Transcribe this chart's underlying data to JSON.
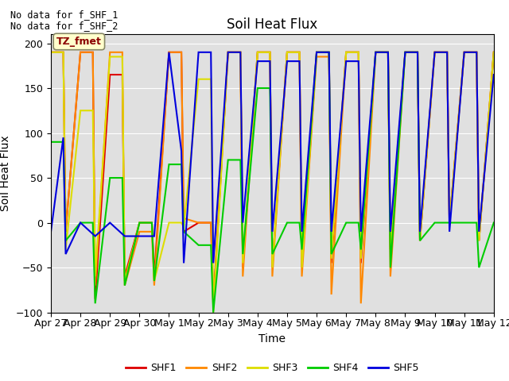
{
  "title": "Soil Heat Flux",
  "ylabel": "Soil Heat Flux",
  "xlabel": "Time",
  "text_line1": "No data for f_SHF_1",
  "text_line2": "No data for f_SHF_2",
  "annotation_box": "TZ_fmet",
  "ylim": [
    -100,
    210
  ],
  "yticks": [
    -100,
    -50,
    0,
    50,
    100,
    150,
    200
  ],
  "colors": {
    "SHF1": "#dd0000",
    "SHF2": "#ff8800",
    "SHF3": "#dddd00",
    "SHF4": "#00cc00",
    "SHF5": "#0000dd"
  },
  "bg_color": "#e0e0e0",
  "legend_labels": [
    "SHF1",
    "SHF2",
    "SHF3",
    "SHF4",
    "SHF5"
  ],
  "x_tick_labels": [
    "Apr 27",
    "Apr 28",
    "Apr 29",
    "Apr 30",
    "May 1",
    "May 2",
    "May 3",
    "May 4",
    "May 5",
    "May 6",
    "May 7",
    "May 8",
    "May 9",
    "May 10",
    "May 11",
    "May 12"
  ],
  "xlim": [
    0,
    15
  ],
  "shf_data": {
    "SHF1": {
      "x": [
        0.0,
        0.42,
        0.5,
        1.0,
        1.42,
        1.5,
        2.0,
        2.42,
        2.5,
        3.0,
        3.42,
        3.5,
        4.0,
        4.42,
        4.5,
        5.0,
        5.42,
        5.5,
        6.0,
        6.42,
        6.5,
        7.0,
        7.42,
        7.5,
        8.0,
        8.42,
        8.5,
        9.0,
        9.42,
        9.5,
        10.0,
        10.42,
        10.5,
        11.0,
        11.42,
        11.5,
        12.0,
        12.42,
        12.5,
        13.0,
        13.42,
        13.5,
        14.0,
        14.42,
        14.5,
        15.0
      ],
      "y": [
        190,
        190,
        -10,
        190,
        190,
        -85,
        165,
        165,
        -60,
        0,
        0,
        -60,
        190,
        190,
        -10,
        0,
        0,
        -90,
        190,
        190,
        -50,
        190,
        190,
        -50,
        190,
        190,
        -50,
        190,
        190,
        -45,
        190,
        190,
        -45,
        190,
        190,
        -30,
        190,
        190,
        -20,
        190,
        190,
        0,
        190,
        190,
        -20,
        190
      ]
    },
    "SHF2": {
      "x": [
        0.0,
        0.42,
        0.5,
        1.0,
        1.42,
        1.5,
        2.0,
        2.42,
        2.5,
        3.0,
        3.42,
        3.5,
        4.0,
        4.42,
        4.5,
        5.0,
        5.42,
        5.5,
        6.0,
        6.42,
        6.5,
        7.0,
        7.42,
        7.5,
        8.0,
        8.42,
        8.5,
        9.0,
        9.42,
        9.5,
        10.0,
        10.42,
        10.5,
        11.0,
        11.42,
        11.5,
        12.0,
        12.42,
        12.5,
        13.0,
        13.42,
        13.5,
        14.0,
        14.42,
        14.5,
        15.0
      ],
      "y": [
        190,
        190,
        -10,
        190,
        190,
        -70,
        190,
        190,
        -70,
        -10,
        -10,
        -70,
        190,
        190,
        5,
        0,
        0,
        -95,
        190,
        190,
        -60,
        190,
        190,
        -60,
        190,
        190,
        -60,
        185,
        185,
        -80,
        190,
        190,
        -90,
        190,
        190,
        -60,
        190,
        190,
        -20,
        190,
        190,
        0,
        190,
        190,
        -20,
        190
      ]
    },
    "SHF3": {
      "x": [
        0.0,
        0.42,
        0.5,
        1.0,
        1.42,
        1.5,
        2.0,
        2.42,
        2.5,
        3.0,
        3.42,
        3.5,
        4.0,
        4.42,
        4.5,
        5.0,
        5.42,
        5.5,
        6.0,
        6.42,
        6.5,
        7.0,
        7.42,
        7.5,
        8.0,
        8.42,
        8.5,
        9.0,
        9.42,
        9.5,
        10.0,
        10.42,
        10.5,
        11.0,
        11.42,
        11.5,
        12.0,
        12.42,
        12.5,
        13.0,
        13.42,
        13.5,
        14.0,
        14.42,
        14.5,
        15.0
      ],
      "y": [
        190,
        190,
        -30,
        125,
        125,
        -60,
        185,
        185,
        -65,
        0,
        0,
        -65,
        0,
        0,
        -5,
        160,
        160,
        -100,
        190,
        190,
        -45,
        190,
        190,
        -50,
        190,
        190,
        -50,
        190,
        190,
        -40,
        190,
        190,
        -40,
        190,
        190,
        -30,
        190,
        190,
        -20,
        190,
        190,
        0,
        190,
        190,
        -20,
        190
      ]
    },
    "SHF4": {
      "x": [
        0.0,
        0.42,
        0.5,
        1.0,
        1.42,
        1.5,
        2.0,
        2.42,
        2.5,
        3.0,
        3.42,
        3.5,
        4.0,
        4.42,
        4.5,
        5.0,
        5.42,
        5.5,
        6.0,
        6.42,
        6.5,
        7.0,
        7.42,
        7.5,
        8.0,
        8.42,
        8.5,
        9.0,
        9.42,
        9.5,
        10.0,
        10.42,
        10.5,
        11.0,
        11.42,
        11.5,
        12.0,
        12.42,
        12.5,
        13.0,
        13.42,
        13.5,
        14.0,
        14.42,
        14.5,
        15.0
      ],
      "y": [
        90,
        90,
        -20,
        0,
        0,
        -90,
        50,
        50,
        -70,
        0,
        0,
        -65,
        65,
        65,
        -10,
        -25,
        -25,
        -100,
        70,
        70,
        -35,
        150,
        150,
        -35,
        0,
        0,
        -30,
        190,
        190,
        -35,
        0,
        0,
        -30,
        190,
        190,
        -50,
        190,
        190,
        -20,
        0,
        0,
        0,
        0,
        0,
        -50,
        0
      ]
    },
    "SHF5": {
      "x": [
        0.0,
        0.42,
        0.5,
        1.0,
        1.5,
        2.0,
        2.5,
        3.0,
        3.42,
        3.5,
        4.0,
        4.42,
        4.5,
        5.0,
        5.42,
        5.5,
        6.0,
        6.42,
        6.5,
        7.0,
        7.42,
        7.5,
        8.0,
        8.42,
        8.5,
        9.0,
        9.42,
        9.5,
        10.0,
        10.42,
        10.5,
        11.0,
        11.42,
        11.5,
        12.0,
        12.42,
        12.5,
        13.0,
        13.42,
        13.5,
        14.0,
        14.42,
        14.5,
        15.0
      ],
      "y": [
        -10,
        95,
        -35,
        0,
        -15,
        0,
        -15,
        -15,
        -15,
        -15,
        190,
        80,
        -45,
        190,
        190,
        -45,
        190,
        190,
        0,
        180,
        180,
        -10,
        180,
        180,
        -10,
        190,
        190,
        -10,
        180,
        180,
        -10,
        190,
        190,
        -10,
        190,
        190,
        -10,
        190,
        190,
        -10,
        190,
        190,
        -10,
        165
      ]
    }
  }
}
